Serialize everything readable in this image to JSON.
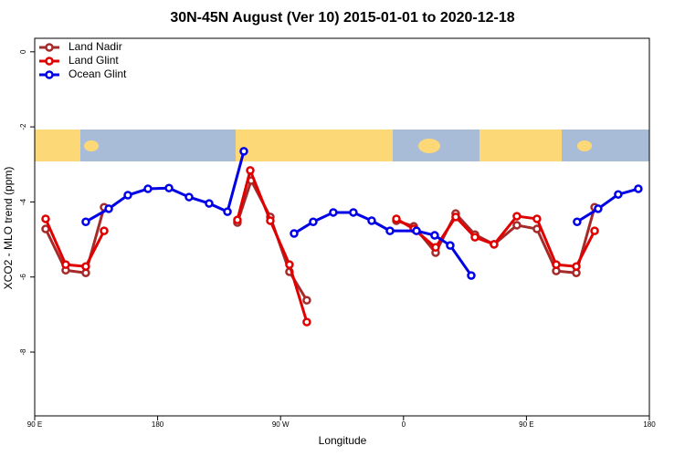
{
  "chart_data": {
    "type": "line",
    "title": "30N-45N August (Ver 10)   2015-01-01 to 2020-12-18",
    "x_label": "Longitude",
    "y_label": "XCO2 - MLO trend (ppm)",
    "xlim": [
      90,
      540
    ],
    "ylim": [
      -9.7,
      0.36
    ],
    "xticks": [
      {
        "value": 90,
        "label": "90 E"
      },
      {
        "value": 180,
        "label": "180"
      },
      {
        "value": 270,
        "label": "90 W"
      },
      {
        "value": 360,
        "label": "0"
      },
      {
        "value": 450,
        "label": "90 E"
      },
      {
        "value": 540,
        "label": "180"
      }
    ],
    "yticks": [
      0,
      -2,
      -4,
      -6,
      -8
    ],
    "legend": "top-left",
    "series": [
      {
        "name": "Land Nadir",
        "color": "#a52a2a",
        "x": [
          98,
          112.7,
          127.4,
          140.8,
          null,
          238.4,
          248.5,
          262.5,
          276.5,
          289.2,
          null,
          354.8,
          367.5,
          383.5,
          398.2,
          412.3,
          426.3,
          443.0,
          457.7,
          471.8,
          486.5,
          499.9
        ],
        "values": [
          -4.72,
          -5.82,
          -5.89,
          -4.14,
          null,
          -4.55,
          -3.43,
          -4.4,
          -5.86,
          -6.62,
          null,
          -4.5,
          -4.65,
          -5.35,
          -4.31,
          -4.87,
          -5.13,
          -4.62,
          -4.72,
          -5.84,
          -5.89,
          -4.14
        ]
      },
      {
        "name": "Land Glint",
        "color": "#e00000",
        "x": [
          98,
          112.7,
          127.4,
          140.8,
          null,
          238.4,
          247.8,
          262.5,
          276.5,
          289.2,
          null,
          354.8,
          367.5,
          383.5,
          398.2,
          412.3,
          426.3,
          443.0,
          457.7,
          471.8,
          486.5,
          499.9
        ],
        "values": [
          -4.45,
          -5.67,
          -5.72,
          -4.77,
          null,
          -4.48,
          -3.16,
          -4.5,
          -5.67,
          -7.2,
          null,
          -4.45,
          -4.72,
          -5.21,
          -4.4,
          -4.94,
          -5.13,
          -4.38,
          -4.45,
          -5.67,
          -5.72,
          -4.77
        ]
      },
      {
        "name": "Ocean Glint",
        "color": "#0000e6",
        "x": [
          127.4,
          144.2,
          158.2,
          172.9,
          188.3,
          203.0,
          217.7,
          231.1,
          243.1,
          null,
          279.9,
          293.9,
          308.6,
          323.3,
          336.7,
          350.1,
          369.5,
          382.8,
          394.2,
          409.6,
          null,
          487.1,
          502.5,
          517.2,
          531.9
        ],
        "values": [
          -4.53,
          -4.18,
          -3.82,
          -3.65,
          -3.63,
          -3.87,
          -4.04,
          -4.26,
          -2.65,
          null,
          -4.84,
          -4.53,
          -4.28,
          -4.28,
          -4.5,
          -4.77,
          -4.77,
          -4.89,
          -5.16,
          -5.96,
          null,
          -4.53,
          -4.18,
          -3.8,
          -3.65
        ]
      }
    ]
  }
}
